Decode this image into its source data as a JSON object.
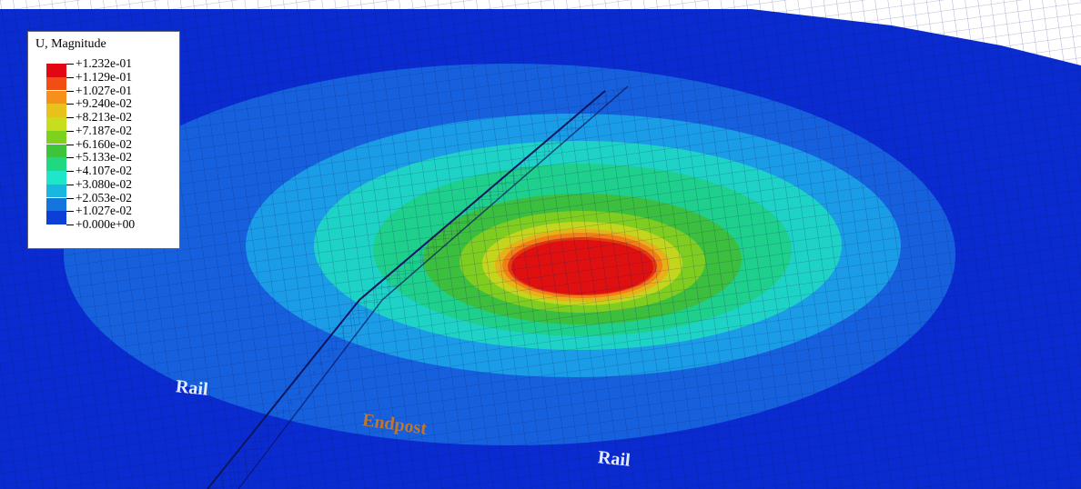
{
  "legend": {
    "title": "U, Magnitude",
    "entries": [
      {
        "label": "+1.232e-01",
        "color": "#e30613"
      },
      {
        "label": "+1.129e-01",
        "color": "#f04e12"
      },
      {
        "label": "+1.027e-01",
        "color": "#f6901a"
      },
      {
        "label": "+9.240e-02",
        "color": "#e8c21b"
      },
      {
        "label": "+8.213e-02",
        "color": "#c8de1c"
      },
      {
        "label": "+7.187e-02",
        "color": "#7ed21e"
      },
      {
        "label": "+6.160e-02",
        "color": "#3dc43a"
      },
      {
        "label": "+5.133e-02",
        "color": "#1fd882"
      },
      {
        "label": "+4.107e-02",
        "color": "#1fe6c8"
      },
      {
        "label": "+3.080e-02",
        "color": "#19b6e0"
      },
      {
        "label": "+2.053e-02",
        "color": "#1476dd"
      },
      {
        "label": "+1.027e-02",
        "color": "#0c3fd6"
      },
      {
        "label": "+0.000e+00",
        "color": ""
      }
    ],
    "background_color": "#0a2bd0"
  },
  "annotations": {
    "rail_left": "Rail",
    "endpost": "Endpost",
    "rail_right": "Rail"
  },
  "colors": {
    "rail_text": "#e6ecff",
    "endpost_text": "#c0762a",
    "mesh_line": "#0b1660"
  }
}
